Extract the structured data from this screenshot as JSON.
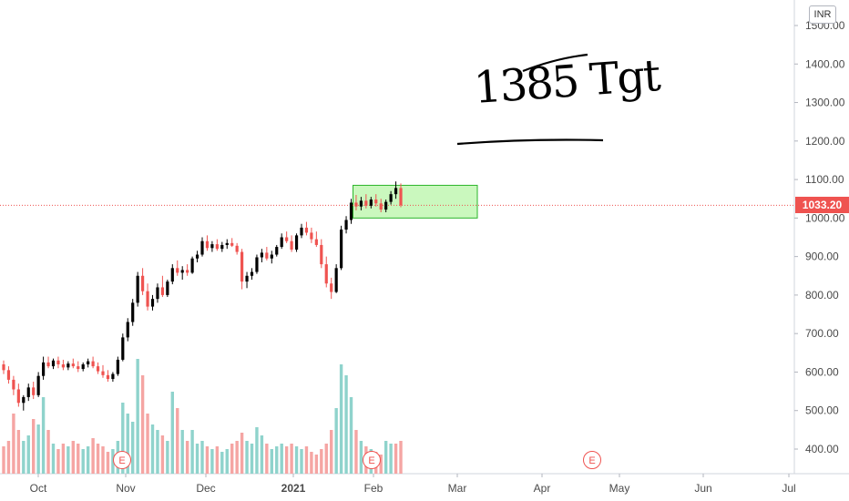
{
  "currency": "INR",
  "last_price": "1033.20",
  "annotation": "1385 Tgt",
  "earnings_marker_label": "E",
  "colors": {
    "up": "#26a69a",
    "down": "#ef5350",
    "up_candle": "#000000",
    "down_candle": "#ef5350",
    "grid": "#f0f3fa",
    "box_fill": "#b8f5a8",
    "box_border": "#2bb52b",
    "price_line": "#ef5350"
  },
  "chart_data": {
    "type": "candlestick",
    "title": "",
    "xlabel": "",
    "ylabel": "",
    "ylim": [
      340,
      1530
    ],
    "y_ticks": [
      "1500.00",
      "1400.00",
      "1300.00",
      "1200.00",
      "1100.00",
      "1000.00",
      "900.00",
      "800.00",
      "700.00",
      "600.00",
      "500.00",
      "400.00"
    ],
    "x_ticks": [
      "Oct",
      "Nov",
      "Dec",
      "2021",
      "Feb",
      "Mar",
      "Apr",
      "May",
      "Jun",
      "Jul"
    ],
    "x_tick_bold": "2021",
    "series": [
      {
        "values": [
          {
            "o": 620,
            "h": 630,
            "l": 595,
            "c": 605
          },
          {
            "o": 605,
            "h": 615,
            "l": 570,
            "c": 580
          },
          {
            "o": 580,
            "h": 590,
            "l": 540,
            "c": 555
          },
          {
            "o": 555,
            "h": 570,
            "l": 510,
            "c": 520
          },
          {
            "o": 520,
            "h": 540,
            "l": 500,
            "c": 535
          },
          {
            "o": 535,
            "h": 570,
            "l": 525,
            "c": 560
          },
          {
            "o": 560,
            "h": 575,
            "l": 530,
            "c": 540
          },
          {
            "o": 540,
            "h": 600,
            "l": 535,
            "c": 590
          },
          {
            "o": 590,
            "h": 640,
            "l": 580,
            "c": 625
          },
          {
            "o": 625,
            "h": 640,
            "l": 610,
            "c": 615
          },
          {
            "o": 615,
            "h": 635,
            "l": 608,
            "c": 630
          },
          {
            "o": 630,
            "h": 640,
            "l": 610,
            "c": 620
          },
          {
            "o": 620,
            "h": 632,
            "l": 605,
            "c": 612
          },
          {
            "o": 612,
            "h": 628,
            "l": 605,
            "c": 622
          },
          {
            "o": 622,
            "h": 635,
            "l": 610,
            "c": 615
          },
          {
            "o": 615,
            "h": 628,
            "l": 600,
            "c": 608
          },
          {
            "o": 608,
            "h": 625,
            "l": 602,
            "c": 620
          },
          {
            "o": 620,
            "h": 635,
            "l": 612,
            "c": 628
          },
          {
            "o": 628,
            "h": 640,
            "l": 610,
            "c": 615
          },
          {
            "o": 615,
            "h": 625,
            "l": 595,
            "c": 602
          },
          {
            "o": 602,
            "h": 618,
            "l": 585,
            "c": 592
          },
          {
            "o": 592,
            "h": 605,
            "l": 575,
            "c": 582
          },
          {
            "o": 582,
            "h": 600,
            "l": 575,
            "c": 595
          },
          {
            "o": 595,
            "h": 640,
            "l": 590,
            "c": 632
          },
          {
            "o": 632,
            "h": 700,
            "l": 628,
            "c": 690
          },
          {
            "o": 690,
            "h": 740,
            "l": 680,
            "c": 730
          },
          {
            "o": 730,
            "h": 790,
            "l": 720,
            "c": 780
          },
          {
            "o": 780,
            "h": 860,
            "l": 770,
            "c": 850
          },
          {
            "o": 850,
            "h": 870,
            "l": 800,
            "c": 810
          },
          {
            "o": 810,
            "h": 830,
            "l": 760,
            "c": 770
          },
          {
            "o": 770,
            "h": 800,
            "l": 760,
            "c": 790
          },
          {
            "o": 790,
            "h": 830,
            "l": 780,
            "c": 820
          },
          {
            "o": 820,
            "h": 850,
            "l": 795,
            "c": 800
          },
          {
            "o": 800,
            "h": 840,
            "l": 795,
            "c": 835
          },
          {
            "o": 835,
            "h": 880,
            "l": 828,
            "c": 870
          },
          {
            "o": 870,
            "h": 890,
            "l": 850,
            "c": 858
          },
          {
            "o": 858,
            "h": 875,
            "l": 840,
            "c": 865
          },
          {
            "o": 865,
            "h": 880,
            "l": 850,
            "c": 858
          },
          {
            "o": 858,
            "h": 900,
            "l": 855,
            "c": 895
          },
          {
            "o": 895,
            "h": 915,
            "l": 885,
            "c": 905
          },
          {
            "o": 905,
            "h": 950,
            "l": 900,
            "c": 940
          },
          {
            "o": 940,
            "h": 955,
            "l": 915,
            "c": 922
          },
          {
            "o": 922,
            "h": 940,
            "l": 912,
            "c": 932
          },
          {
            "o": 932,
            "h": 945,
            "l": 915,
            "c": 920
          },
          {
            "o": 920,
            "h": 938,
            "l": 912,
            "c": 930
          },
          {
            "o": 930,
            "h": 945,
            "l": 920,
            "c": 935
          },
          {
            "o": 935,
            "h": 948,
            "l": 925,
            "c": 928
          },
          {
            "o": 928,
            "h": 935,
            "l": 905,
            "c": 912
          },
          {
            "o": 912,
            "h": 920,
            "l": 815,
            "c": 835
          },
          {
            "o": 835,
            "h": 860,
            "l": 818,
            "c": 850
          },
          {
            "o": 850,
            "h": 870,
            "l": 840,
            "c": 860
          },
          {
            "o": 860,
            "h": 905,
            "l": 855,
            "c": 898
          },
          {
            "o": 898,
            "h": 920,
            "l": 885,
            "c": 910
          },
          {
            "o": 910,
            "h": 925,
            "l": 890,
            "c": 895
          },
          {
            "o": 895,
            "h": 915,
            "l": 882,
            "c": 905
          },
          {
            "o": 905,
            "h": 930,
            "l": 900,
            "c": 925
          },
          {
            "o": 925,
            "h": 960,
            "l": 920,
            "c": 950
          },
          {
            "o": 950,
            "h": 965,
            "l": 935,
            "c": 940
          },
          {
            "o": 940,
            "h": 955,
            "l": 912,
            "c": 918
          },
          {
            "o": 918,
            "h": 960,
            "l": 912,
            "c": 955
          },
          {
            "o": 955,
            "h": 985,
            "l": 948,
            "c": 975
          },
          {
            "o": 975,
            "h": 990,
            "l": 955,
            "c": 962
          },
          {
            "o": 962,
            "h": 975,
            "l": 935,
            "c": 945
          },
          {
            "o": 945,
            "h": 965,
            "l": 925,
            "c": 930
          },
          {
            "o": 930,
            "h": 945,
            "l": 870,
            "c": 880
          },
          {
            "o": 880,
            "h": 900,
            "l": 820,
            "c": 830
          },
          {
            "o": 830,
            "h": 845,
            "l": 790,
            "c": 808
          },
          {
            "o": 808,
            "h": 880,
            "l": 805,
            "c": 870
          },
          {
            "o": 870,
            "h": 980,
            "l": 865,
            "c": 970
          },
          {
            "o": 970,
            "h": 1005,
            "l": 960,
            "c": 995
          },
          {
            "o": 995,
            "h": 1050,
            "l": 985,
            "c": 1040
          },
          {
            "o": 1040,
            "h": 1060,
            "l": 1020,
            "c": 1030
          },
          {
            "o": 1030,
            "h": 1055,
            "l": 1020,
            "c": 1045
          },
          {
            "o": 1045,
            "h": 1062,
            "l": 1025,
            "c": 1032
          },
          {
            "o": 1032,
            "h": 1055,
            "l": 1025,
            "c": 1048
          },
          {
            "o": 1048,
            "h": 1062,
            "l": 1030,
            "c": 1038
          },
          {
            "o": 1038,
            "h": 1050,
            "l": 1015,
            "c": 1022
          },
          {
            "o": 1022,
            "h": 1048,
            "l": 1015,
            "c": 1042
          },
          {
            "o": 1042,
            "h": 1070,
            "l": 1035,
            "c": 1062
          },
          {
            "o": 1062,
            "h": 1095,
            "l": 1050,
            "c": 1078
          },
          {
            "o": 1078,
            "h": 1090,
            "l": 1028,
            "c": 1033
          }
        ]
      }
    ],
    "volume": [
      {
        "v": 50,
        "d": 1
      },
      {
        "v": 60,
        "d": 1
      },
      {
        "v": 110,
        "d": 1
      },
      {
        "v": 80,
        "d": 1
      },
      {
        "v": 60,
        "d": 0
      },
      {
        "v": 70,
        "d": 0
      },
      {
        "v": 100,
        "d": 1
      },
      {
        "v": 90,
        "d": 0
      },
      {
        "v": 140,
        "d": 0
      },
      {
        "v": 80,
        "d": 1
      },
      {
        "v": 55,
        "d": 0
      },
      {
        "v": 45,
        "d": 1
      },
      {
        "v": 55,
        "d": 1
      },
      {
        "v": 50,
        "d": 0
      },
      {
        "v": 60,
        "d": 1
      },
      {
        "v": 55,
        "d": 1
      },
      {
        "v": 45,
        "d": 0
      },
      {
        "v": 50,
        "d": 0
      },
      {
        "v": 65,
        "d": 1
      },
      {
        "v": 55,
        "d": 1
      },
      {
        "v": 50,
        "d": 1
      },
      {
        "v": 40,
        "d": 1
      },
      {
        "v": 45,
        "d": 0
      },
      {
        "v": 60,
        "d": 0
      },
      {
        "v": 130,
        "d": 0
      },
      {
        "v": 110,
        "d": 0
      },
      {
        "v": 95,
        "d": 0
      },
      {
        "v": 210,
        "d": 0
      },
      {
        "v": 180,
        "d": 1
      },
      {
        "v": 110,
        "d": 1
      },
      {
        "v": 90,
        "d": 0
      },
      {
        "v": 80,
        "d": 0
      },
      {
        "v": 70,
        "d": 1
      },
      {
        "v": 60,
        "d": 0
      },
      {
        "v": 150,
        "d": 0
      },
      {
        "v": 120,
        "d": 1
      },
      {
        "v": 80,
        "d": 0
      },
      {
        "v": 60,
        "d": 1
      },
      {
        "v": 80,
        "d": 0
      },
      {
        "v": 55,
        "d": 0
      },
      {
        "v": 60,
        "d": 0
      },
      {
        "v": 50,
        "d": 1
      },
      {
        "v": 45,
        "d": 0
      },
      {
        "v": 50,
        "d": 1
      },
      {
        "v": 40,
        "d": 0
      },
      {
        "v": 45,
        "d": 0
      },
      {
        "v": 55,
        "d": 1
      },
      {
        "v": 60,
        "d": 1
      },
      {
        "v": 75,
        "d": 1
      },
      {
        "v": 60,
        "d": 0
      },
      {
        "v": 55,
        "d": 0
      },
      {
        "v": 85,
        "d": 0
      },
      {
        "v": 70,
        "d": 0
      },
      {
        "v": 55,
        "d": 1
      },
      {
        "v": 45,
        "d": 0
      },
      {
        "v": 50,
        "d": 0
      },
      {
        "v": 55,
        "d": 0
      },
      {
        "v": 50,
        "d": 1
      },
      {
        "v": 55,
        "d": 1
      },
      {
        "v": 50,
        "d": 0
      },
      {
        "v": 45,
        "d": 0
      },
      {
        "v": 50,
        "d": 1
      },
      {
        "v": 40,
        "d": 1
      },
      {
        "v": 35,
        "d": 1
      },
      {
        "v": 45,
        "d": 1
      },
      {
        "v": 55,
        "d": 1
      },
      {
        "v": 80,
        "d": 1
      },
      {
        "v": 120,
        "d": 0
      },
      {
        "v": 200,
        "d": 0
      },
      {
        "v": 180,
        "d": 0
      },
      {
        "v": 140,
        "d": 0
      },
      {
        "v": 80,
        "d": 1
      },
      {
        "v": 60,
        "d": 0
      },
      {
        "v": 50,
        "d": 1
      },
      {
        "v": 45,
        "d": 0
      },
      {
        "v": 40,
        "d": 1
      },
      {
        "v": 35,
        "d": 1
      },
      {
        "v": 60,
        "d": 0
      },
      {
        "v": 55,
        "d": 0
      },
      {
        "v": 55,
        "d": 1
      },
      {
        "v": 60,
        "d": 1
      }
    ],
    "price_box": {
      "x_start_index": 70,
      "x_end_index": 79,
      "y_low": 1000,
      "y_high": 1085
    },
    "earnings_marker_days": [
      "Nov",
      "Feb",
      "May"
    ]
  }
}
